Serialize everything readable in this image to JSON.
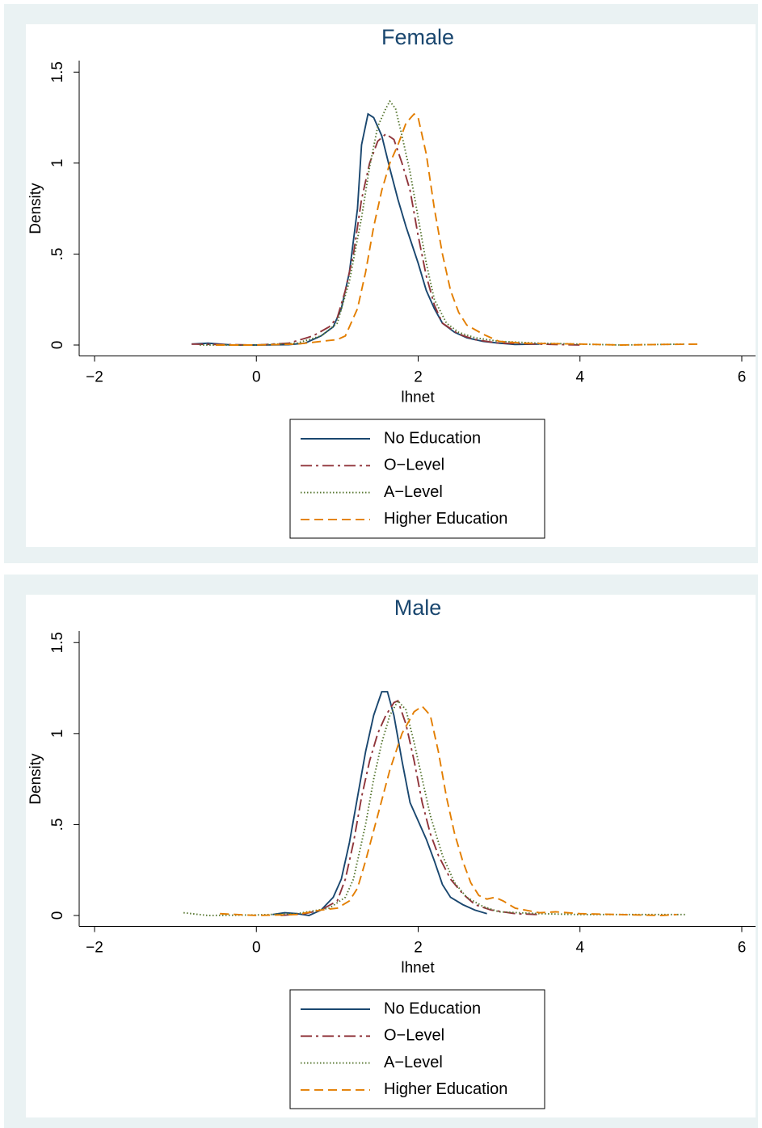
{
  "chart_data": [
    {
      "type": "line",
      "title": "Female",
      "xlabel": "lhnet",
      "ylabel": "Density",
      "xlim": [
        -2.19,
        6.17
      ],
      "ylim": [
        -0.06,
        1.55
      ],
      "xticks": [
        {
          "value": -2,
          "label": "−2"
        },
        0,
        2,
        4,
        6
      ],
      "yticks": [
        0,
        {
          "value": 0.5,
          "label": ".5"
        },
        1,
        1.5
      ],
      "grid": false,
      "legend": "bottom",
      "series": [
        {
          "name": "No Education",
          "color": "#1a476f",
          "style": "solid",
          "x": [
            -0.8,
            -0.6,
            -0.3,
            0,
            0.4,
            0.6,
            0.8,
            0.95,
            1.05,
            1.15,
            1.25,
            1.3,
            1.38,
            1.45,
            1.55,
            1.65,
            1.75,
            1.85,
            2.0,
            2.1,
            2.2,
            2.3,
            2.45,
            2.6,
            2.8,
            3.0,
            3.2,
            3.5
          ],
          "values": [
            0.005,
            0.01,
            0,
            0,
            0.002,
            0.01,
            0.05,
            0.1,
            0.2,
            0.4,
            0.75,
            1.1,
            1.27,
            1.25,
            1.15,
            0.97,
            0.8,
            0.65,
            0.45,
            0.3,
            0.2,
            0.12,
            0.07,
            0.04,
            0.02,
            0.01,
            0.003,
            0.005
          ]
        },
        {
          "name": "O−Level",
          "color": "#90353b",
          "style": "dashdot",
          "x": [
            -0.8,
            0,
            0.4,
            0.7,
            0.9,
            1.0,
            1.1,
            1.2,
            1.3,
            1.4,
            1.5,
            1.6,
            1.7,
            1.8,
            1.9,
            2.0,
            2.1,
            2.2,
            2.3,
            2.5,
            2.7,
            3.0,
            3.5,
            4.0
          ],
          "values": [
            0.005,
            0,
            0.01,
            0.05,
            0.1,
            0.15,
            0.3,
            0.5,
            0.8,
            1.0,
            1.12,
            1.16,
            1.13,
            1.0,
            0.85,
            0.6,
            0.38,
            0.22,
            0.12,
            0.06,
            0.03,
            0.01,
            0.005,
            0
          ]
        },
        {
          "name": "A−Level",
          "color": "#55752f",
          "style": "dot",
          "x": [
            -0.7,
            0,
            0.5,
            0.8,
            1.0,
            1.15,
            1.3,
            1.4,
            1.5,
            1.6,
            1.65,
            1.72,
            1.8,
            1.9,
            2.0,
            2.1,
            2.2,
            2.35,
            2.5,
            2.7,
            3.0,
            3.5,
            4.5,
            5.3
          ],
          "values": [
            0,
            0,
            0.01,
            0.05,
            0.12,
            0.35,
            0.7,
            0.98,
            1.2,
            1.3,
            1.34,
            1.3,
            1.15,
            0.95,
            0.7,
            0.45,
            0.25,
            0.12,
            0.07,
            0.04,
            0.02,
            0.01,
            0,
            0.005
          ]
        },
        {
          "name": "Higher Education",
          "color": "#e37e00",
          "style": "dash",
          "x": [
            -0.5,
            0,
            0.5,
            0.8,
            1.0,
            1.1,
            1.25,
            1.35,
            1.45,
            1.55,
            1.65,
            1.75,
            1.85,
            1.95,
            2.0,
            2.1,
            2.2,
            2.3,
            2.4,
            2.5,
            2.6,
            2.8,
            3.0,
            3.3,
            4.0,
            4.5,
            5.0,
            5.5
          ],
          "values": [
            0,
            0,
            0.005,
            0.02,
            0.03,
            0.05,
            0.2,
            0.4,
            0.65,
            0.85,
            1.0,
            1.1,
            1.22,
            1.27,
            1.25,
            1.05,
            0.75,
            0.5,
            0.3,
            0.18,
            0.11,
            0.06,
            0.02,
            0.01,
            0.005,
            0,
            0.003,
            0.005
          ]
        }
      ]
    },
    {
      "type": "line",
      "title": "Male",
      "xlabel": "lhnet",
      "ylabel": "Density",
      "xlim": [
        -2.19,
        6.17
      ],
      "ylim": [
        -0.06,
        1.55
      ],
      "xticks": [
        {
          "value": -2,
          "label": "−2"
        },
        0,
        2,
        4,
        6
      ],
      "yticks": [
        0,
        {
          "value": 0.5,
          "label": ".5"
        },
        1,
        1.5
      ],
      "grid": false,
      "legend": "bottom",
      "series": [
        {
          "name": "No Education",
          "color": "#1a476f",
          "style": "solid",
          "x": [
            0.2,
            0.35,
            0.5,
            0.65,
            0.8,
            0.95,
            1.05,
            1.15,
            1.25,
            1.35,
            1.45,
            1.55,
            1.62,
            1.7,
            1.8,
            1.9,
            2.0,
            2.1,
            2.2,
            2.3,
            2.4,
            2.55,
            2.7,
            2.85
          ],
          "values": [
            0.005,
            0.015,
            0.01,
            0,
            0.03,
            0.1,
            0.2,
            0.4,
            0.65,
            0.9,
            1.1,
            1.23,
            1.23,
            1.1,
            0.85,
            0.62,
            0.52,
            0.42,
            0.3,
            0.17,
            0.1,
            0.06,
            0.03,
            0.01
          ]
        },
        {
          "name": "O−Level",
          "color": "#90353b",
          "style": "dashdot",
          "x": [
            0.3,
            0.6,
            0.8,
            1.0,
            1.1,
            1.2,
            1.3,
            1.4,
            1.5,
            1.6,
            1.7,
            1.75,
            1.85,
            1.95,
            2.05,
            2.15,
            2.25,
            2.4,
            2.55,
            2.7,
            2.9,
            3.2,
            3.5
          ],
          "values": [
            0,
            0.01,
            0.03,
            0.08,
            0.2,
            0.4,
            0.65,
            0.85,
            1.0,
            1.1,
            1.17,
            1.18,
            1.05,
            0.85,
            0.62,
            0.45,
            0.33,
            0.2,
            0.12,
            0.06,
            0.03,
            0.01,
            0.005
          ]
        },
        {
          "name": "A−Level",
          "color": "#55752f",
          "style": "dot",
          "x": [
            -0.9,
            -0.6,
            0,
            0.5,
            0.9,
            1.1,
            1.2,
            1.35,
            1.45,
            1.55,
            1.65,
            1.75,
            1.85,
            1.95,
            2.05,
            2.15,
            2.3,
            2.45,
            2.6,
            2.8,
            3.0,
            3.5,
            4.0,
            5.3
          ],
          "values": [
            0.015,
            0,
            0.003,
            0.01,
            0.04,
            0.1,
            0.2,
            0.5,
            0.75,
            0.95,
            1.1,
            1.18,
            1.13,
            0.95,
            0.75,
            0.55,
            0.33,
            0.18,
            0.1,
            0.05,
            0.02,
            0.01,
            0.005,
            0.005
          ]
        },
        {
          "name": "Higher Education",
          "color": "#e37e00",
          "style": "dash",
          "x": [
            -0.45,
            0,
            0.5,
            0.8,
            1.0,
            1.15,
            1.25,
            1.35,
            1.5,
            1.65,
            1.8,
            1.95,
            2.05,
            2.15,
            2.25,
            2.35,
            2.45,
            2.55,
            2.65,
            2.75,
            2.85,
            2.95,
            3.05,
            3.2,
            3.5,
            3.7,
            4.0,
            4.5,
            5.0,
            5.2
          ],
          "values": [
            0.01,
            0,
            0.005,
            0.03,
            0.04,
            0.08,
            0.15,
            0.3,
            0.55,
            0.8,
            1.0,
            1.12,
            1.15,
            1.1,
            0.9,
            0.65,
            0.45,
            0.3,
            0.18,
            0.11,
            0.09,
            0.1,
            0.08,
            0.04,
            0.015,
            0.02,
            0.01,
            0.005,
            0,
            0.005
          ]
        }
      ]
    }
  ]
}
